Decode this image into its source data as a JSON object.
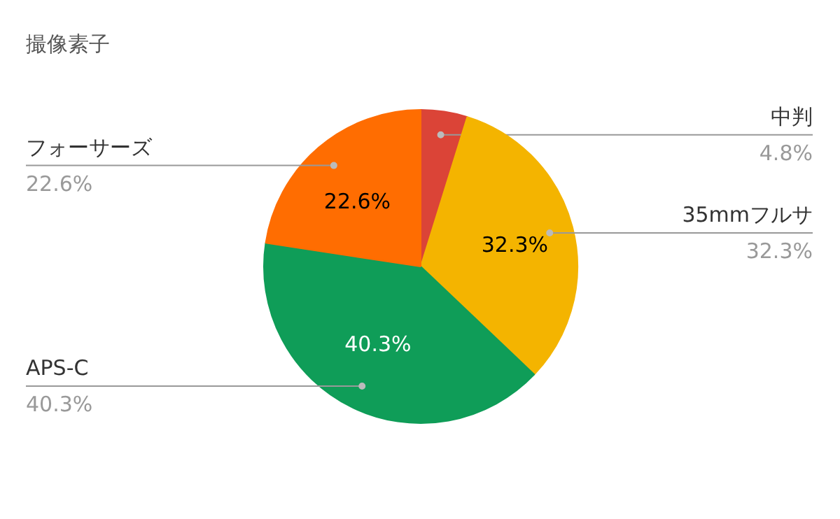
{
  "chart_data": {
    "type": "pie",
    "title": "撮像素子",
    "categories": [
      "中判",
      "35mmフルサ",
      "APS-C",
      "フォーサーズ"
    ],
    "values": [
      4.8,
      32.3,
      40.3,
      22.6
    ],
    "colors": [
      "#db4437",
      "#f4b400",
      "#0f9d58",
      "#ff6d01"
    ],
    "value_labels": [
      null,
      "32.3%",
      "40.3%",
      "22.6%"
    ],
    "annotations": [
      {
        "text": "4.8%",
        "x": "中判"
      },
      {
        "text": "32.3%",
        "x": "35mmフルサ"
      },
      {
        "text": "40.3%",
        "x": "APS-C"
      },
      {
        "text": "22.6%",
        "x": "フォーサーズ"
      }
    ]
  }
}
